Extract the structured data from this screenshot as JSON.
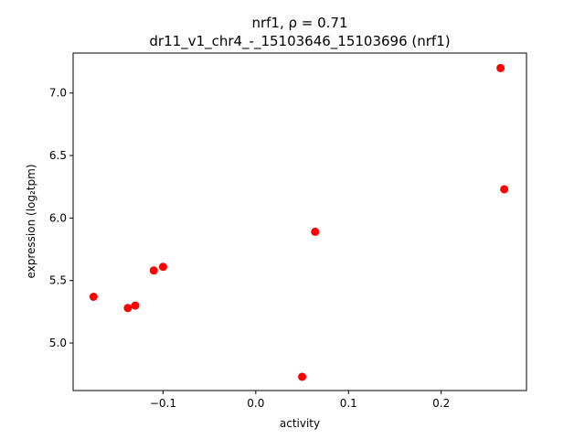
{
  "chart_data": {
    "type": "scatter",
    "title_line1": "nrf1, ρ = 0.71",
    "title_line2": "dr11_v1_chr4_-_15103646_15103696 (nrf1)",
    "xlabel": "activity",
    "ylabel": "expression (log₂tpm)",
    "xlim": [
      -0.197,
      0.292
    ],
    "ylim": [
      4.62,
      7.32
    ],
    "xticks": [
      -0.1,
      0.0,
      0.1,
      0.2
    ],
    "xtick_labels": [
      "−0.1",
      "0.0",
      "0.1",
      "0.2"
    ],
    "yticks": [
      5.0,
      5.5,
      6.0,
      6.5,
      7.0
    ],
    "ytick_labels": [
      "5.0",
      "5.5",
      "6.0",
      "6.5",
      "7.0"
    ],
    "grid": false,
    "marker_color": "#ff0000",
    "points": [
      {
        "x": -0.175,
        "y": 5.37
      },
      {
        "x": -0.138,
        "y": 5.28
      },
      {
        "x": -0.13,
        "y": 5.3
      },
      {
        "x": -0.11,
        "y": 5.58
      },
      {
        "x": -0.1,
        "y": 5.61
      },
      {
        "x": 0.05,
        "y": 4.73
      },
      {
        "x": 0.064,
        "y": 5.89
      },
      {
        "x": 0.264,
        "y": 7.2
      },
      {
        "x": 0.268,
        "y": 6.23
      }
    ]
  }
}
